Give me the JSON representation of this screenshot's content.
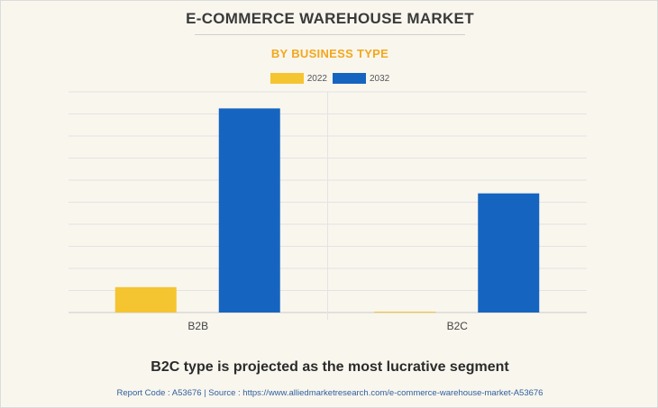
{
  "header": {
    "title": "E-COMMERCE WAREHOUSE MARKET",
    "subtitle": "BY BUSINESS TYPE"
  },
  "colors": {
    "series_2022": "#f5c431",
    "series_2032": "#1565c0",
    "subtitle": "#f2a81d"
  },
  "chart_data": {
    "type": "bar",
    "categories": [
      "B2B",
      "B2C"
    ],
    "series": [
      {
        "name": "2022",
        "values": [
          11.5,
          0.3
        ]
      },
      {
        "name": "2032",
        "values": [
          92.5,
          54
        ]
      }
    ],
    "ylim": [
      0,
      100
    ],
    "y_gridlines": 10,
    "y_tick_labels_shown": false,
    "grid": true,
    "legend_position": "top-center"
  },
  "footer": {
    "headline": "B2C type is projected as the most lucrative segment",
    "source": "Report Code : A53676  |  Source : https://www.alliedmarketresearch.com/e-commerce-warehouse-market-A53676"
  }
}
